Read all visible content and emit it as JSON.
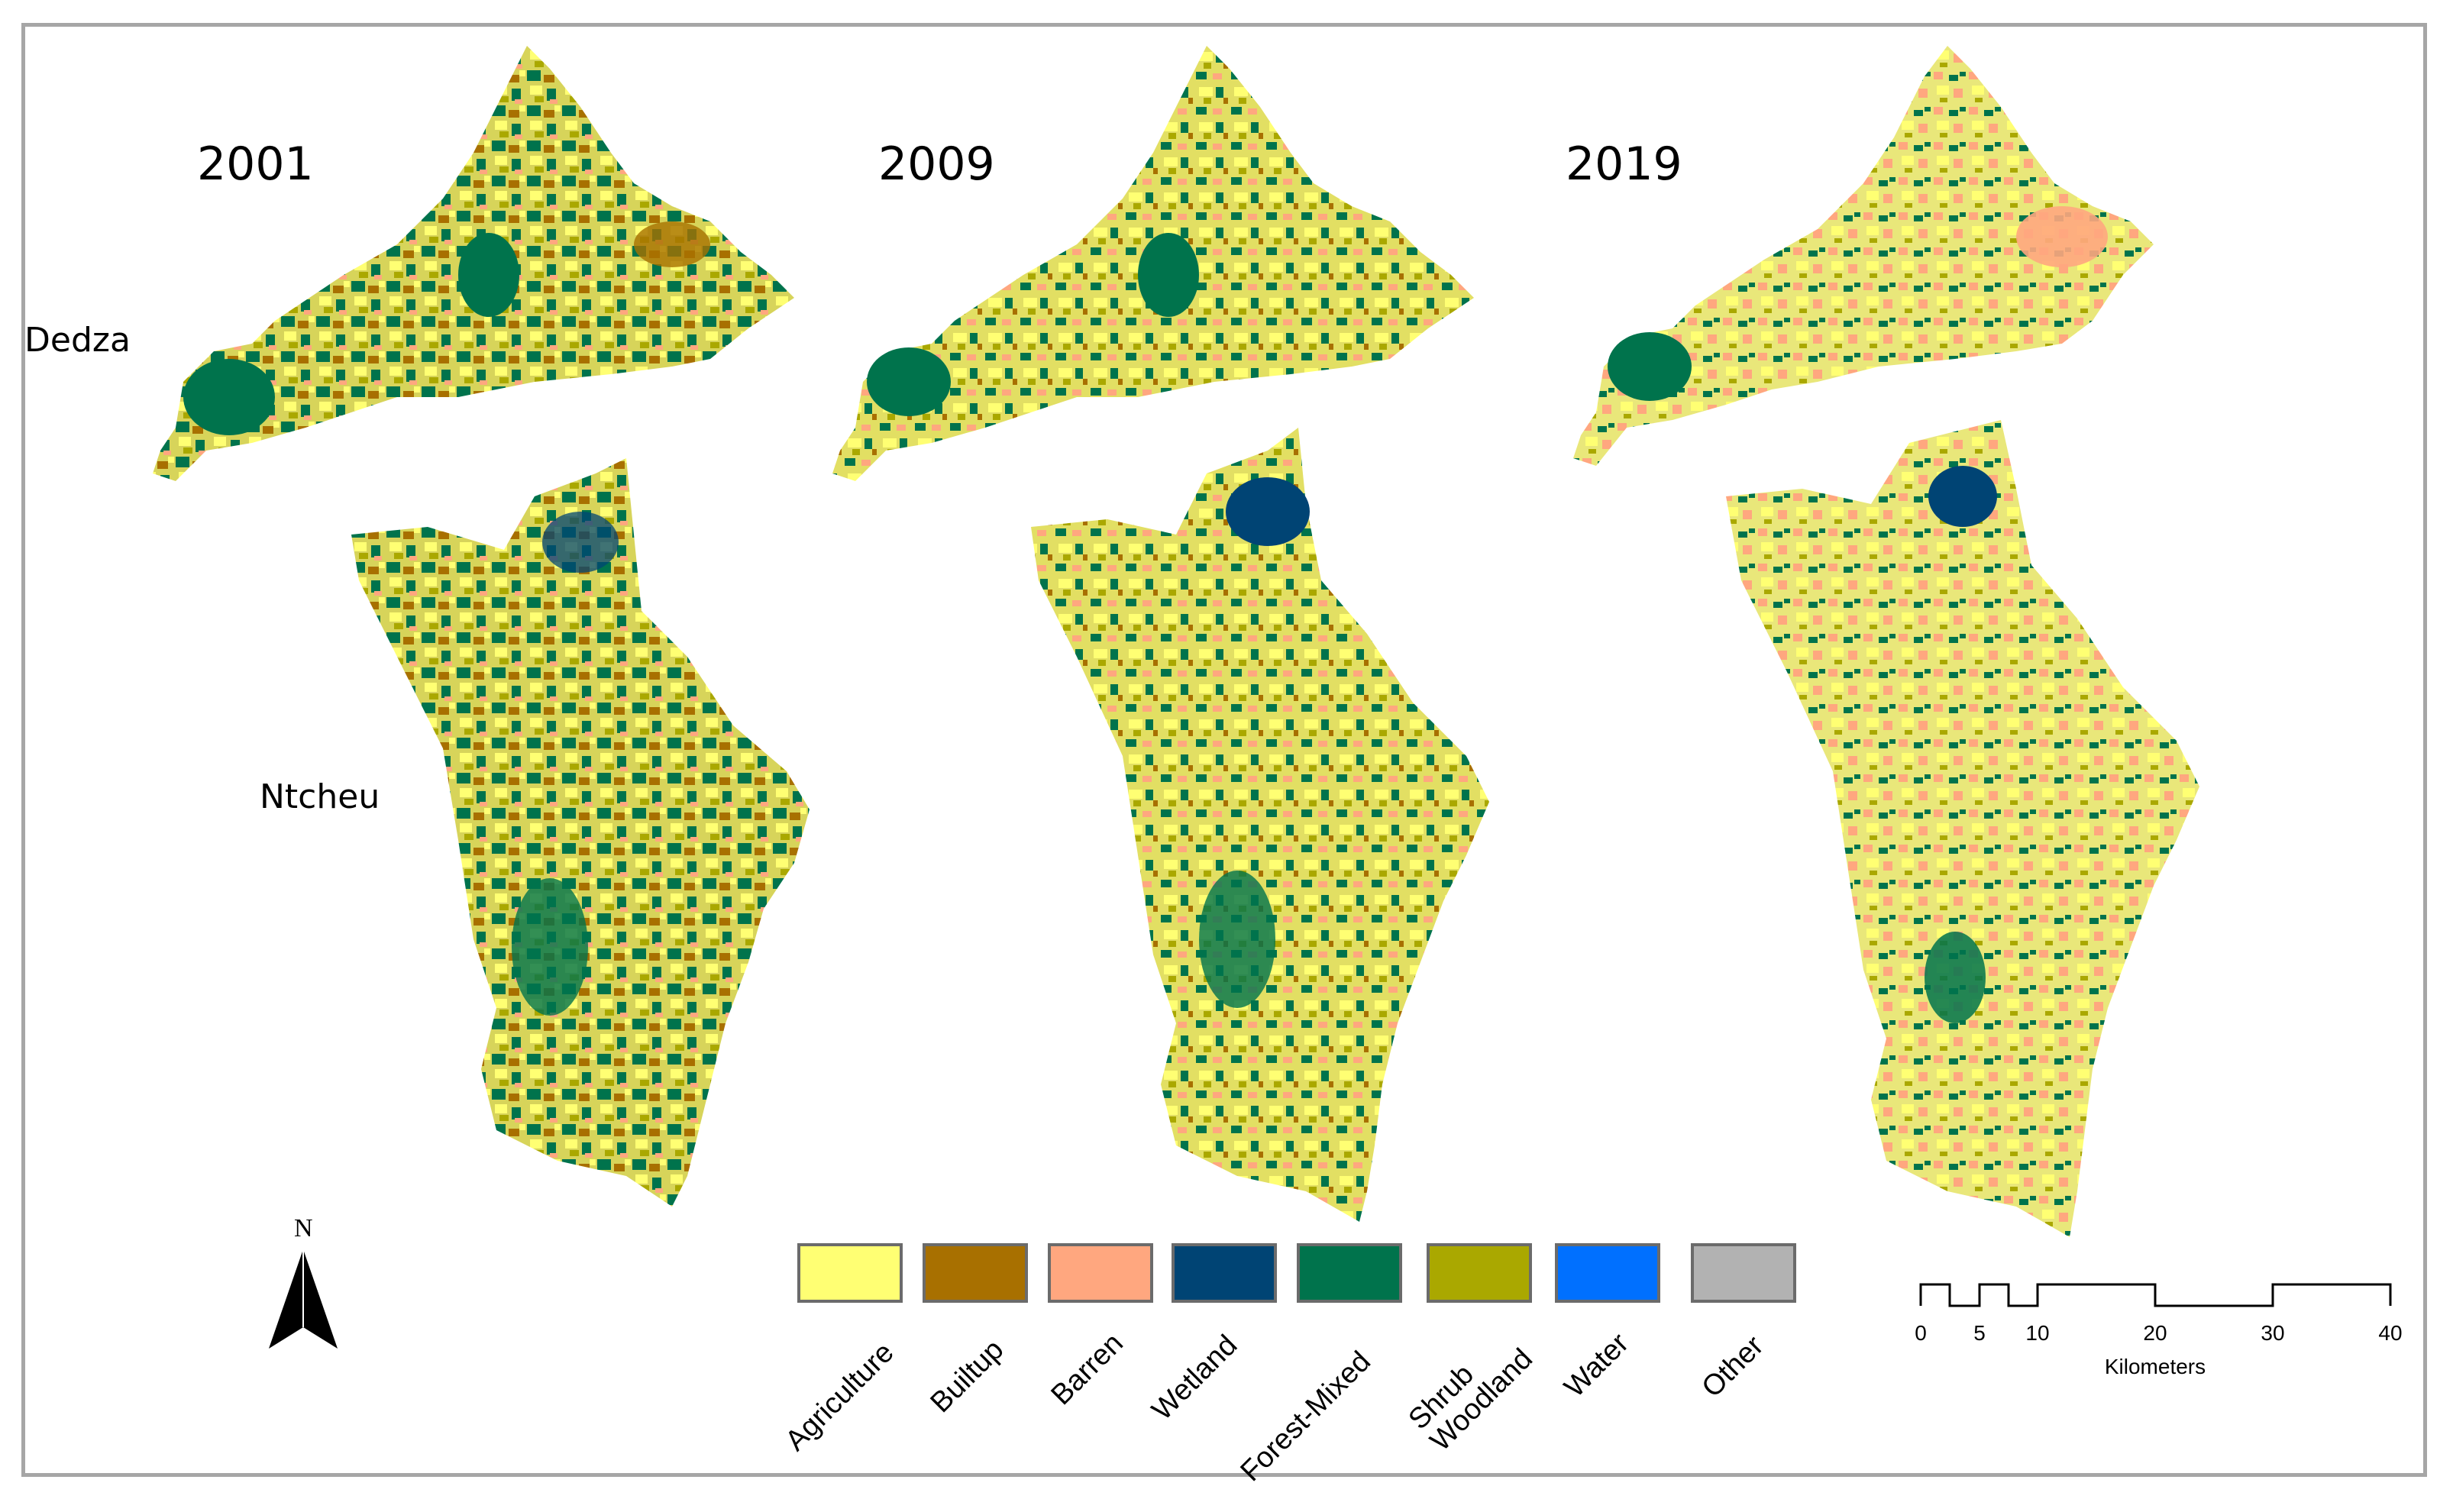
{
  "maps": {
    "years": [
      "2001",
      "2009",
      "2019"
    ],
    "districts": {
      "top": "Dedza",
      "bottom": "Ntcheu"
    }
  },
  "legend": {
    "items": [
      {
        "label": "Agriculture",
        "color": "#ffff73"
      },
      {
        "label": "Builtup",
        "color": "#a87000"
      },
      {
        "label": "Barren",
        "color": "#ffa77f"
      },
      {
        "label": "Wetland",
        "color": "#004474"
      },
      {
        "label": "Forest-Mixed",
        "color": "#00734c"
      },
      {
        "label": "Shrub Woodland",
        "color": "#aaa800"
      },
      {
        "label": "Water",
        "color": "#0070ff"
      },
      {
        "label": "Other",
        "color": "#b2b2b2"
      }
    ]
  },
  "scale_bar": {
    "ticks": [
      "0",
      "5",
      "10",
      "20",
      "30",
      "40"
    ],
    "units": "Kilometers"
  },
  "north_arrow": {
    "label": "N",
    "icon": "north-arrow-icon"
  }
}
